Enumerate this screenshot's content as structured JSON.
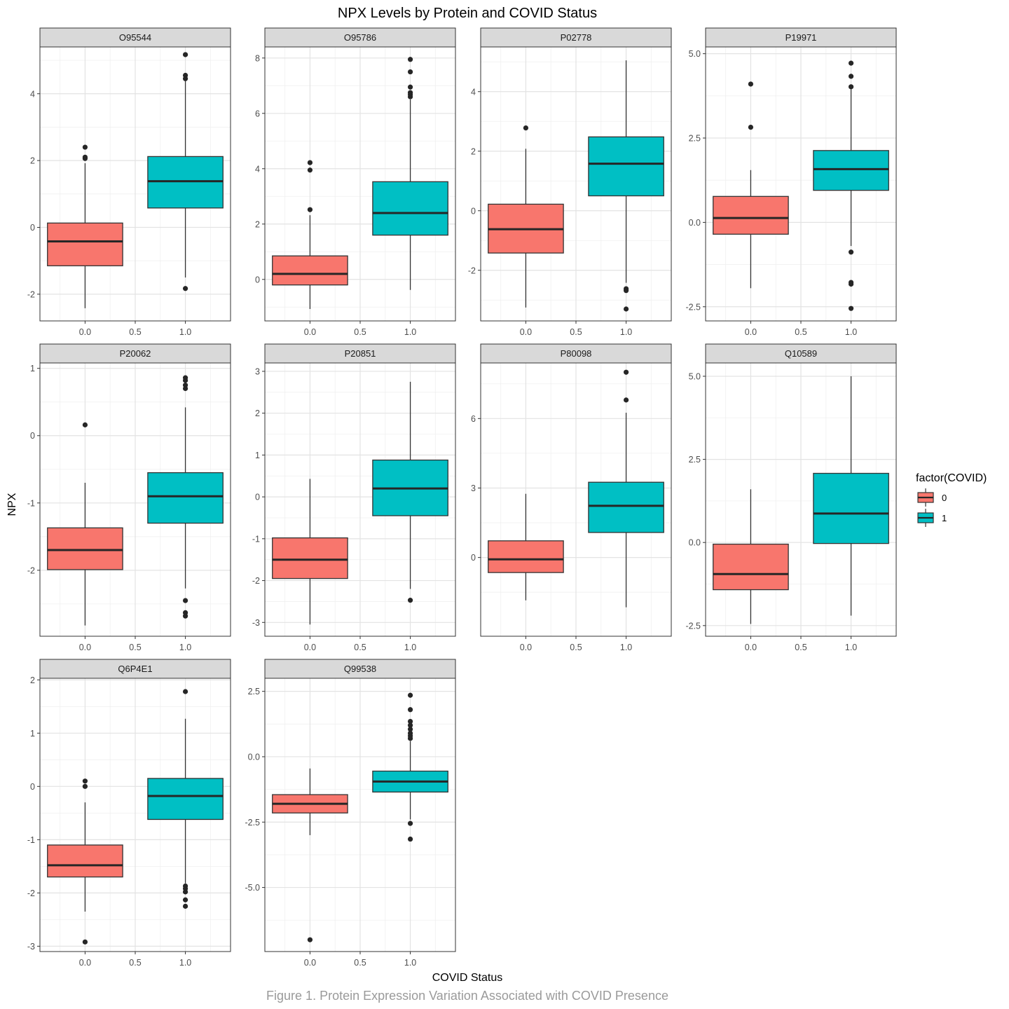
{
  "chart_data": {
    "type": "boxplot",
    "title": "NPX Levels by Protein and COVID Status",
    "caption": "Figure 1. Protein Expression Variation Associated with COVID Presence",
    "xlabel": "COVID Status",
    "ylabel": "NPX",
    "x_ticks": [
      "0.0",
      "0.5",
      "1.0"
    ],
    "xlim": [
      -0.45,
      1.45
    ],
    "legend": {
      "title": "factor(COVID)",
      "placement": "right",
      "entries": [
        {
          "label": "0",
          "color": "#F8766D"
        },
        {
          "label": "1",
          "color": "#00BFC4"
        }
      ]
    },
    "panels": [
      {
        "name": "O95544",
        "ylim": [
          -2.8,
          5.4
        ],
        "y_ticks": [
          {
            "v": -2,
            "l": "-2"
          },
          {
            "v": 0,
            "l": "0"
          },
          {
            "v": 2,
            "l": "2"
          },
          {
            "v": 4,
            "l": "4"
          }
        ],
        "boxes": [
          {
            "x": 0,
            "lower": -2.42,
            "q1": -1.15,
            "median": -0.42,
            "q3": 0.13,
            "upper": 1.92,
            "outliers": [
              2.4,
              2.1,
              2.06
            ]
          },
          {
            "x": 1,
            "lower": -1.5,
            "q1": 0.58,
            "median": 1.38,
            "q3": 2.12,
            "upper": 4.4,
            "outliers": [
              5.17,
              4.55,
              4.45,
              -1.83
            ]
          }
        ]
      },
      {
        "name": "O95786",
        "ylim": [
          -1.5,
          8.4
        ],
        "y_ticks": [
          {
            "v": 0,
            "l": "0"
          },
          {
            "v": 2,
            "l": "2"
          },
          {
            "v": 4,
            "l": "4"
          },
          {
            "v": 6,
            "l": "6"
          },
          {
            "v": 8,
            "l": "8"
          }
        ],
        "boxes": [
          {
            "x": 0,
            "lower": -1.07,
            "q1": -0.2,
            "median": 0.2,
            "q3": 0.85,
            "upper": 2.32,
            "outliers": [
              4.22,
              3.95,
              2.52
            ]
          },
          {
            "x": 1,
            "lower": -0.38,
            "q1": 1.6,
            "median": 2.4,
            "q3": 3.53,
            "upper": 6.5,
            "outliers": [
              7.95,
              7.5,
              6.95,
              6.75,
              6.68,
              6.6
            ]
          }
        ]
      },
      {
        "name": "P02778",
        "ylim": [
          -3.7,
          5.5
        ],
        "y_ticks": [
          {
            "v": -2,
            "l": "-2"
          },
          {
            "v": 0,
            "l": "0"
          },
          {
            "v": 2,
            "l": "2"
          },
          {
            "v": 4,
            "l": "4"
          }
        ],
        "boxes": [
          {
            "x": 0,
            "lower": -3.25,
            "q1": -1.42,
            "median": -0.62,
            "q3": 0.22,
            "upper": 2.08,
            "outliers": [
              2.78
            ]
          },
          {
            "x": 1,
            "lower": -2.42,
            "q1": 0.5,
            "median": 1.58,
            "q3": 2.48,
            "upper": 5.05,
            "outliers": [
              -2.62,
              -2.68,
              -3.3
            ]
          }
        ]
      },
      {
        "name": "P19971",
        "ylim": [
          -2.92,
          5.2
        ],
        "y_ticks": [
          {
            "v": -2.5,
            "l": "-2.5"
          },
          {
            "v": 0,
            "l": "0.0"
          },
          {
            "v": 2.5,
            "l": "2.5"
          },
          {
            "v": 5,
            "l": "5.0"
          }
        ],
        "boxes": [
          {
            "x": 0,
            "lower": -1.95,
            "q1": -0.35,
            "median": 0.13,
            "q3": 0.77,
            "upper": 1.55,
            "outliers": [
              4.1,
              2.82
            ]
          },
          {
            "x": 1,
            "lower": -0.7,
            "q1": 0.95,
            "median": 1.58,
            "q3": 2.13,
            "upper": 3.95,
            "outliers": [
              4.72,
              4.33,
              4.02,
              -0.88,
              -1.78,
              -1.83,
              -2.55
            ]
          }
        ]
      },
      {
        "name": "P20062",
        "ylim": [
          -2.98,
          1.08
        ],
        "y_ticks": [
          {
            "v": -2,
            "l": "-2"
          },
          {
            "v": -1,
            "l": "-1"
          },
          {
            "v": 0,
            "l": "0"
          },
          {
            "v": 1,
            "l": "1"
          }
        ],
        "boxes": [
          {
            "x": 0,
            "lower": -2.82,
            "q1": -1.99,
            "median": -1.7,
            "q3": -1.37,
            "upper": -0.7,
            "outliers": [
              0.16
            ]
          },
          {
            "x": 1,
            "lower": -2.27,
            "q1": -1.3,
            "median": -0.9,
            "q3": -0.55,
            "upper": 0.42,
            "outliers": [
              0.86,
              0.82,
              0.75,
              0.7,
              -2.45,
              -2.63,
              -2.68
            ]
          }
        ]
      },
      {
        "name": "P20851",
        "ylim": [
          -3.33,
          3.2
        ],
        "y_ticks": [
          {
            "v": -3,
            "l": "-3"
          },
          {
            "v": -2,
            "l": "-2"
          },
          {
            "v": -1,
            "l": "-1"
          },
          {
            "v": 0,
            "l": "0"
          },
          {
            "v": 1,
            "l": "1"
          },
          {
            "v": 2,
            "l": "2"
          },
          {
            "v": 3,
            "l": "3"
          }
        ],
        "boxes": [
          {
            "x": 0,
            "lower": -3.05,
            "q1": -1.95,
            "median": -1.5,
            "q3": -0.98,
            "upper": 0.43,
            "outliers": []
          },
          {
            "x": 1,
            "lower": -2.2,
            "q1": -0.45,
            "median": 0.2,
            "q3": 0.88,
            "upper": 2.75,
            "outliers": [
              -2.47
            ]
          }
        ]
      },
      {
        "name": "P80098",
        "ylim": [
          -3.4,
          8.4
        ],
        "y_ticks": [
          {
            "v": 0,
            "l": "0"
          },
          {
            "v": 3,
            "l": "3"
          },
          {
            "v": 6,
            "l": "6"
          }
        ],
        "boxes": [
          {
            "x": 0,
            "lower": -1.85,
            "q1": -0.65,
            "median": -0.08,
            "q3": 0.72,
            "upper": 2.75,
            "outliers": []
          },
          {
            "x": 1,
            "lower": -2.15,
            "q1": 1.08,
            "median": 2.23,
            "q3": 3.25,
            "upper": 6.25,
            "outliers": [
              8.0,
              6.8
            ]
          }
        ]
      },
      {
        "name": "Q10589",
        "ylim": [
          -2.82,
          5.4
        ],
        "y_ticks": [
          {
            "v": -2.5,
            "l": "-2.5"
          },
          {
            "v": 0,
            "l": "0.0"
          },
          {
            "v": 2.5,
            "l": "2.5"
          },
          {
            "v": 5,
            "l": "5.0"
          }
        ],
        "boxes": [
          {
            "x": 0,
            "lower": -2.45,
            "q1": -1.42,
            "median": -0.95,
            "q3": -0.05,
            "upper": 1.6,
            "outliers": []
          },
          {
            "x": 1,
            "lower": -2.2,
            "q1": -0.03,
            "median": 0.87,
            "q3": 2.08,
            "upper": 5.0,
            "outliers": []
          }
        ]
      },
      {
        "name": "Q6P4E1",
        "ylim": [
          -3.1,
          2.03
        ],
        "y_ticks": [
          {
            "v": -3,
            "l": "-3"
          },
          {
            "v": -2,
            "l": "-2"
          },
          {
            "v": -1,
            "l": "-1"
          },
          {
            "v": 0,
            "l": "0"
          },
          {
            "v": 1,
            "l": "1"
          },
          {
            "v": 2,
            "l": "2"
          }
        ],
        "boxes": [
          {
            "x": 0,
            "lower": -2.35,
            "q1": -1.7,
            "median": -1.48,
            "q3": -1.1,
            "upper": -0.3,
            "outliers": [
              0.1,
              0.0,
              -2.92
            ]
          },
          {
            "x": 1,
            "lower": -1.82,
            "q1": -0.62,
            "median": -0.18,
            "q3": 0.15,
            "upper": 1.27,
            "outliers": [
              1.78,
              -1.87,
              -1.92,
              -1.98,
              -2.13,
              -2.25
            ]
          }
        ]
      },
      {
        "name": "Q99538",
        "ylim": [
          -7.45,
          3.0
        ],
        "y_ticks": [
          {
            "v": -5,
            "l": "-5.0"
          },
          {
            "v": -2.5,
            "l": "-2.5"
          },
          {
            "v": 0,
            "l": "0.0"
          },
          {
            "v": 2.5,
            "l": "2.5"
          }
        ],
        "boxes": [
          {
            "x": 0,
            "lower": -3.0,
            "q1": -2.15,
            "median": -1.8,
            "q3": -1.45,
            "upper": -0.45,
            "outliers": [
              -7.0
            ]
          },
          {
            "x": 1,
            "lower": -2.4,
            "q1": -1.35,
            "median": -0.95,
            "q3": -0.55,
            "upper": 0.6,
            "outliers": [
              2.35,
              1.8,
              1.35,
              1.2,
              1.05,
              0.9,
              0.8,
              0.7,
              -2.55,
              -3.15
            ]
          }
        ]
      }
    ]
  }
}
